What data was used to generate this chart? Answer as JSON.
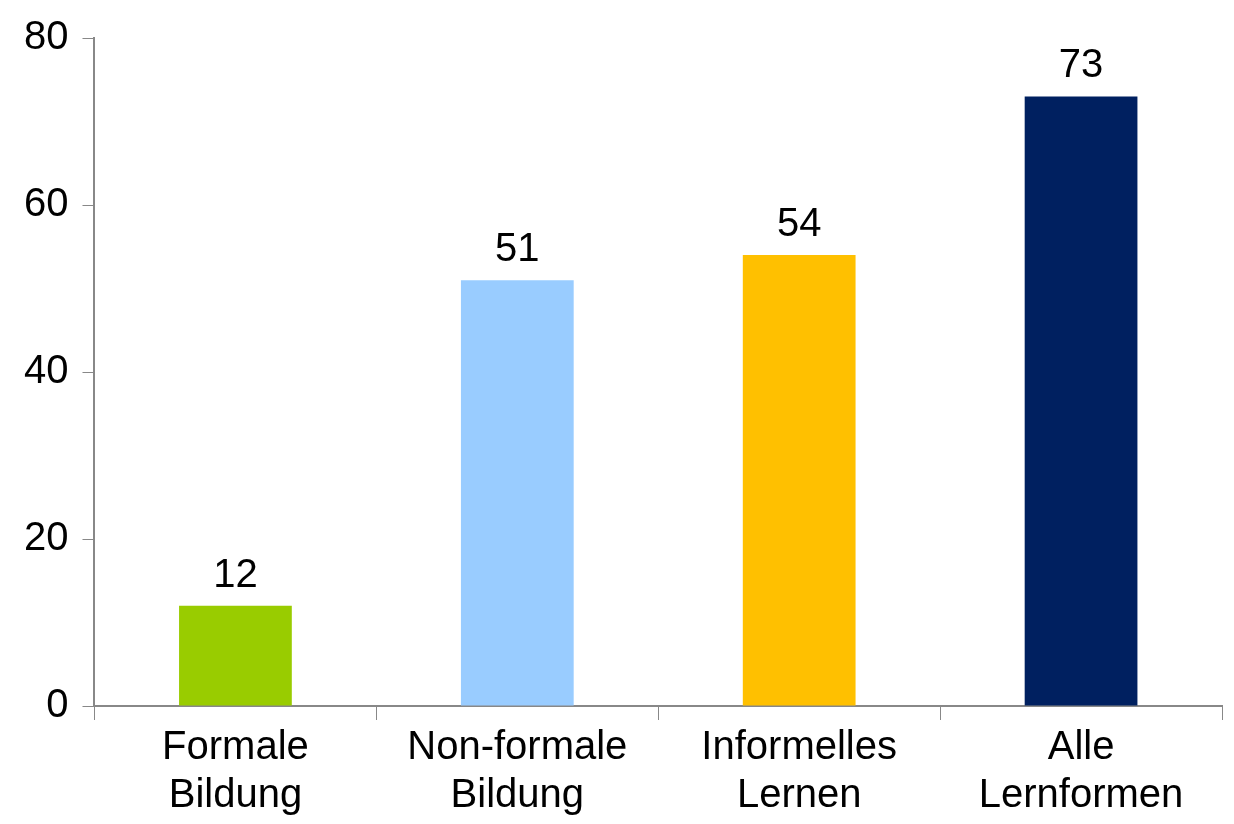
{
  "chart_data": {
    "type": "bar",
    "categories": [
      "Formale Bildung",
      "Non-formale Bildung",
      "Informelles Lernen",
      "Alle Lernformen"
    ],
    "values": [
      12,
      51,
      54,
      73
    ],
    "colors": [
      "#99cc00",
      "#99ccff",
      "#ffc000",
      "#002060"
    ],
    "ylim": [
      0,
      80
    ],
    "yticks": [
      0,
      20,
      40,
      60,
      80
    ],
    "grid": false,
    "legend": false,
    "data_labels": true
  }
}
